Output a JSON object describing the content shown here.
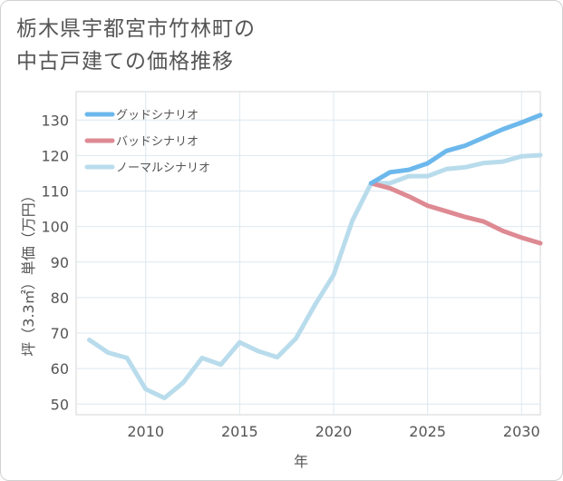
{
  "title_lines": [
    "栃木県宇都宮市竹林町の",
    "中古戸建ての価格推移"
  ],
  "chart_data": {
    "type": "line",
    "title": "栃木県宇都宮市竹林町の中古戸建ての価格推移",
    "xlabel": "年",
    "ylabel": "坪（3.3㎡）単価（万円）",
    "xlim": [
      2006.3,
      2031
    ],
    "ylim": [
      47,
      138
    ],
    "xticks": [
      2010,
      2015,
      2020,
      2025,
      2030
    ],
    "yticks": [
      50,
      60,
      70,
      80,
      90,
      100,
      110,
      120,
      130
    ],
    "grid": true,
    "legend_position": "top-left",
    "series": [
      {
        "name": "グッドシナリオ",
        "color": "#6cb8ec",
        "x": [
          2022,
          2023,
          2024,
          2025,
          2026,
          2027,
          2028,
          2029,
          2030,
          2031
        ],
        "y": [
          112.2,
          115.3,
          116.0,
          117.8,
          121.3,
          122.8,
          125.1,
          127.4,
          129.3,
          131.4
        ]
      },
      {
        "name": "バッドシナリオ",
        "color": "#de8a93",
        "x": [
          2022,
          2023,
          2024,
          2025,
          2026,
          2027,
          2028,
          2029,
          2030,
          2031
        ],
        "y": [
          112.2,
          110.8,
          108.5,
          105.9,
          104.3,
          102.7,
          101.4,
          98.8,
          96.9,
          95.3
        ]
      },
      {
        "name": "ノーマルシナリオ",
        "color": "#b9dcec",
        "x": [
          2007,
          2008,
          2009,
          2010,
          2011,
          2012,
          2013,
          2014,
          2015,
          2016,
          2017,
          2018,
          2019,
          2020,
          2021,
          2022,
          2023,
          2024,
          2025,
          2026,
          2027,
          2028,
          2029,
          2030,
          2031
        ],
        "y": [
          68.1,
          64.5,
          63.0,
          54.2,
          51.7,
          56.1,
          63.0,
          61.1,
          67.4,
          64.9,
          63.2,
          68.5,
          77.9,
          86.4,
          101.7,
          112.2,
          112.2,
          114.2,
          114.2,
          116.2,
          116.7,
          117.9,
          118.3,
          119.8,
          120.1
        ]
      }
    ]
  }
}
